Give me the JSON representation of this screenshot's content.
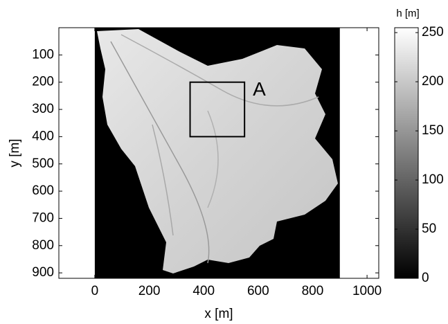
{
  "chart_data": {
    "type": "image",
    "xlabel": "x [m]",
    "ylabel": "y [m]",
    "xlim": [
      -132,
      1043
    ],
    "ylim": [
      0,
      920
    ],
    "y_reversed": true,
    "xticks": [
      0,
      200,
      400,
      600,
      800,
      1000
    ],
    "yticks": [
      100,
      200,
      300,
      400,
      500,
      600,
      700,
      800,
      900
    ],
    "image_xlim": [
      0,
      900
    ],
    "annotation": {
      "text": "A",
      "x": [
        350,
        550
      ],
      "y": [
        200,
        400
      ]
    },
    "colorbar": {
      "label": "h [m]",
      "lim": [
        0,
        255
      ],
      "ticks": [
        0,
        50,
        100,
        150,
        200,
        250
      ]
    }
  }
}
